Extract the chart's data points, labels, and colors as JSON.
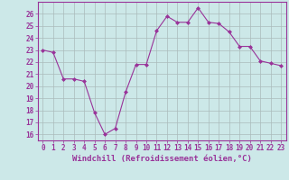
{
  "x": [
    0,
    1,
    2,
    3,
    4,
    5,
    6,
    7,
    8,
    9,
    10,
    11,
    12,
    13,
    14,
    15,
    16,
    17,
    18,
    19,
    20,
    21,
    22,
    23
  ],
  "y": [
    23.0,
    22.8,
    20.6,
    20.6,
    20.4,
    17.8,
    16.0,
    16.5,
    19.5,
    21.8,
    21.8,
    24.6,
    25.8,
    25.3,
    25.3,
    26.5,
    25.3,
    25.2,
    24.5,
    23.3,
    23.3,
    22.1,
    21.9,
    21.7
  ],
  "line_color": "#993399",
  "marker": "D",
  "marker_size": 2.0,
  "bg_color": "#cce8e8",
  "grid_color": "#aabbbb",
  "ylim_min": 15.5,
  "ylim_max": 27.0,
  "xlim_min": -0.5,
  "xlim_max": 23.5,
  "yticks": [
    16,
    17,
    18,
    19,
    20,
    21,
    22,
    23,
    24,
    25,
    26
  ],
  "xticks": [
    0,
    1,
    2,
    3,
    4,
    5,
    6,
    7,
    8,
    9,
    10,
    11,
    12,
    13,
    14,
    15,
    16,
    17,
    18,
    19,
    20,
    21,
    22,
    23
  ],
  "tick_label_fontsize": 5.5,
  "xlabel_fontsize": 6.5,
  "xlabel": "Windchill (Refroidissement éolien,°C)",
  "axis_label_color": "#993399",
  "line_width": 0.8
}
